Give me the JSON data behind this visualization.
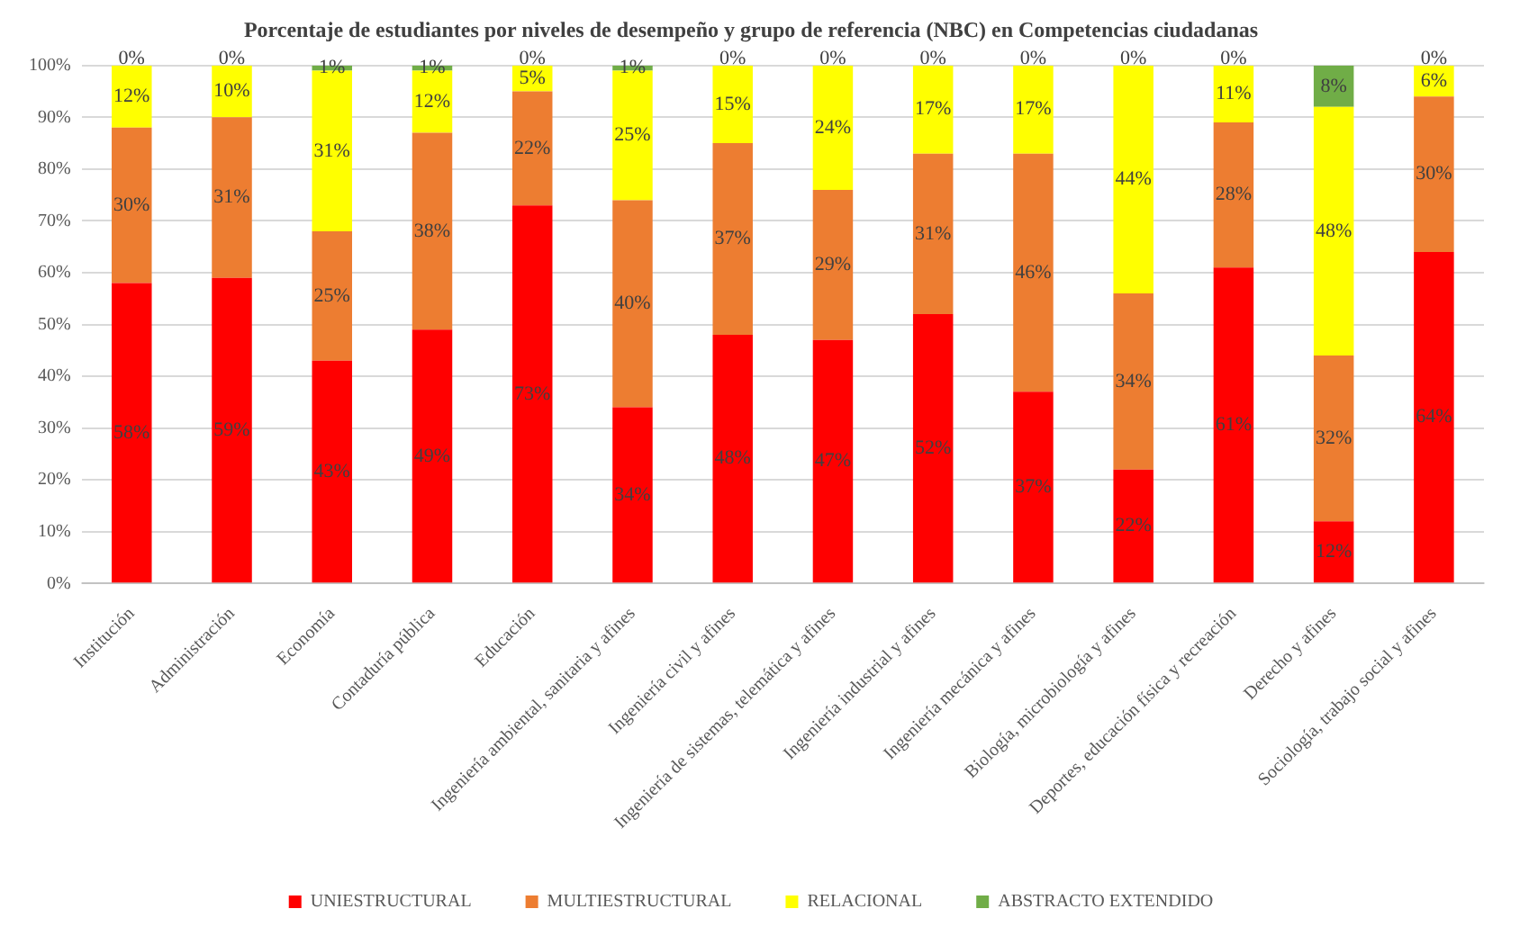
{
  "chart_data": {
    "type": "bar",
    "title": "Porcentaje de estudiantes por niveles de desempeño y grupo de referencia (NBC) en Competencias ciudadanas",
    "categories": [
      "Institución",
      "Administración",
      "Economía",
      "Contaduría pública",
      "Educación",
      "Ingeniería ambiental, sanitaria y afines",
      "Ingeniería civil y afines",
      "Ingeniería de sistemas, telemática y afines",
      "Ingeniería industrial y afines",
      "Ingeniería mecánica y afines",
      "Biología, microbiología y afines",
      "Deportes, educación física y recreación",
      "Derecho y afines",
      "Sociología, trabajo social y afines"
    ],
    "stacked": true,
    "series": [
      {
        "name": "UNIESTRUCTURAL",
        "color": "#ff0000",
        "values": [
          58,
          59,
          43,
          49,
          73,
          34,
          48,
          47,
          52,
          37,
          22,
          61,
          12,
          64
        ],
        "value_labels": [
          "58%",
          "59%",
          "43%",
          "49%",
          "73%",
          "34%",
          "48%",
          "47%",
          "52%",
          "37%",
          "22%",
          "61%",
          "12%",
          "64%"
        ]
      },
      {
        "name": "MULTIESTRUCTURAL",
        "color": "#ed7d31",
        "values": [
          30,
          31,
          25,
          38,
          22,
          40,
          37,
          29,
          31,
          46,
          34,
          28,
          32,
          30
        ],
        "value_labels": [
          "30%",
          "31%",
          "25%",
          "38%",
          "22%",
          "40%",
          "37%",
          "29%",
          "31%",
          "46%",
          "34%",
          "28%",
          "32%",
          "30%"
        ]
      },
      {
        "name": "RELACIONAL",
        "color": "#ffff00",
        "values": [
          12,
          10,
          31,
          12,
          5,
          25,
          15,
          24,
          17,
          17,
          44,
          11,
          48,
          6
        ],
        "value_labels": [
          "12%",
          "10%",
          "31%",
          "12%",
          "5%",
          "25%",
          "15%",
          "24%",
          "17%",
          "17%",
          "44%",
          "11%",
          "48%",
          "6%"
        ]
      },
      {
        "name": "ABSTRACTO EXTENDIDO",
        "color": "#70ad47",
        "values": [
          0,
          0,
          1,
          1,
          0,
          1,
          0,
          0,
          0,
          0,
          0,
          0,
          8,
          0
        ],
        "value_labels": [
          "0%",
          "0%",
          "1%",
          "1%",
          "0%",
          "1%",
          "0%",
          "0%",
          "0%",
          "0%",
          "0%",
          "0%",
          "8%",
          "0%"
        ]
      }
    ],
    "ylim": [
      0,
      100
    ],
    "yticks": [
      {
        "value": 0,
        "label": "0%"
      },
      {
        "value": 10,
        "label": "10%"
      },
      {
        "value": 20,
        "label": "20%"
      },
      {
        "value": 30,
        "label": "30%"
      },
      {
        "value": 40,
        "label": "40%"
      },
      {
        "value": 50,
        "label": "50%"
      },
      {
        "value": 60,
        "label": "60%"
      },
      {
        "value": 70,
        "label": "70%"
      },
      {
        "value": 80,
        "label": "80%"
      },
      {
        "value": 90,
        "label": "90%"
      },
      {
        "value": 100,
        "label": "100%"
      }
    ],
    "grid": "y",
    "legend": "bottom"
  }
}
